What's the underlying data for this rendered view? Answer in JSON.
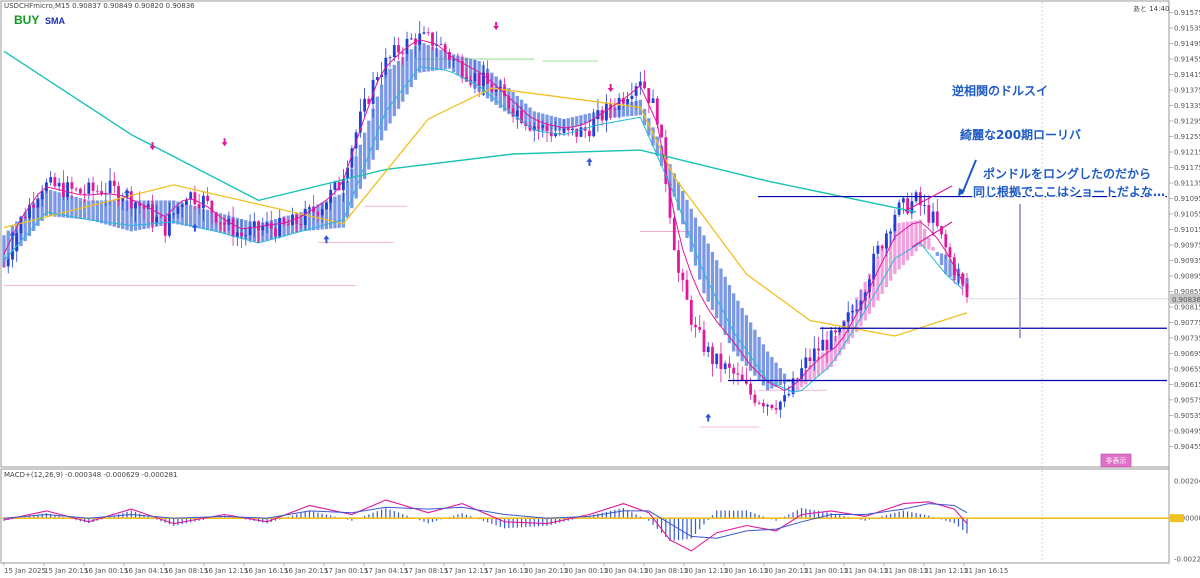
{
  "header": {
    "symbol_line": "USDCHFmicro,M15  0.90837 0.90849 0.90820 0.90836",
    "signal": "BUY",
    "indicator": "SMA",
    "timer": "あと 14:40",
    "macd_label": "MACD+(12,26,9) -0.000348 -0.000629 -0.000281",
    "button_label": "非表示"
  },
  "colors": {
    "up_candle": "#1f3fd6",
    "down_candle": "#e0189c",
    "sma200": "#1bc3b4",
    "sma_yellow": "#f0c020",
    "sma_fast": "#e0189c",
    "sma_cyan": "#25b9d6",
    "ribbon_down": "#5b7fe0",
    "ribbon_up": "#f08ad8",
    "hline": "#0000aa",
    "annotation": "#1e5bc6",
    "macd_zero": "#f0c020",
    "current_price_bg": "#c8c8c8",
    "button_bg": "#e070c8"
  },
  "annotations": [
    "逆相関のドルスイ",
    "綺麗な200期ローリバ",
    "ポンドルをロングしたのだから",
    "同じ根拠でここはショートだよな…"
  ],
  "chart_data": {
    "type": "candlestick",
    "symbol": "USDCHFmicro",
    "timeframe": "M15",
    "price_axis": {
      "ymin": 0.90425,
      "ymax": 0.91592,
      "ticks": [
        0.91575,
        0.91535,
        0.91495,
        0.91455,
        0.91415,
        0.91375,
        0.91335,
        0.91295,
        0.91255,
        0.91215,
        0.91175,
        0.91135,
        0.91095,
        0.91055,
        0.91015,
        0.90975,
        0.90935,
        0.90895,
        0.90855,
        0.90815,
        0.90775,
        0.90735,
        0.90695,
        0.90655,
        0.90615,
        0.90575,
        0.90535,
        0.90495,
        0.90455
      ],
      "current_price": 0.90836
    },
    "time_labels": [
      "15 Jan 2025",
      "15 Jan 20:15",
      "16 Jan 00:15",
      "16 Jan 04:15",
      "16 Jan 08:15",
      "16 Jan 12:15",
      "16 Jan 16:15",
      "16 Jan 20:15",
      "17 Jan 00:15",
      "17 Jan 04:15",
      "17 Jan 08:15",
      "17 Jan 12:15",
      "17 Jan 16:15",
      "20 Jan 20:15",
      "20 Jan 00:15",
      "20 Jan 04:15",
      "20 Jan 08:15",
      "20 Jan 12:15",
      "20 Jan 16:15",
      "20 Jan 20:15",
      "21 Jan 00:15",
      "21 Jan 04:15",
      "21 Jan 08:15",
      "21 Jan 12:15",
      "21 Jan 16:15"
    ],
    "close_path": [
      [
        0,
        0.9092
      ],
      [
        4,
        0.9104
      ],
      [
        9,
        0.9113
      ],
      [
        14,
        0.9112
      ],
      [
        18,
        0.9111
      ],
      [
        24,
        0.9112
      ],
      [
        28,
        0.9111
      ],
      [
        33,
        0.9107
      ],
      [
        38,
        0.9102
      ],
      [
        43,
        0.9111
      ],
      [
        47,
        0.9109
      ],
      [
        52,
        0.9103
      ],
      [
        56,
        0.91
      ],
      [
        61,
        0.9102
      ],
      [
        66,
        0.9102
      ],
      [
        70,
        0.9104
      ],
      [
        75,
        0.9108
      ],
      [
        79,
        0.9113
      ],
      [
        84,
        0.913
      ],
      [
        88,
        0.9142
      ],
      [
        93,
        0.9148
      ],
      [
        97,
        0.9151
      ],
      [
        102,
        0.915
      ],
      [
        106,
        0.9145
      ],
      [
        111,
        0.9141
      ],
      [
        115,
        0.9138
      ],
      [
        119,
        0.9134
      ],
      [
        124,
        0.9129
      ],
      [
        128,
        0.9127
      ],
      [
        133,
        0.9126
      ],
      [
        137,
        0.9127
      ],
      [
        141,
        0.9131
      ],
      [
        146,
        0.9136
      ],
      [
        150,
        0.9141
      ],
      [
        154,
        0.9131
      ],
      [
        159,
        0.909
      ],
      [
        163,
        0.9075
      ],
      [
        167,
        0.9068
      ],
      [
        172,
        0.9064
      ],
      [
        176,
        0.9059
      ],
      [
        180,
        0.9057
      ],
      [
        184,
        0.9057
      ],
      [
        189,
        0.9067
      ],
      [
        193,
        0.9072
      ],
      [
        197,
        0.9074
      ],
      [
        202,
        0.9085
      ],
      [
        206,
        0.9096
      ],
      [
        210,
        0.9106
      ],
      [
        215,
        0.9109
      ],
      [
        219,
        0.9104
      ],
      [
        223,
        0.9094
      ],
      [
        227,
        0.9084
      ]
    ],
    "sma200_path": [
      [
        0,
        0.91475
      ],
      [
        30,
        0.9126
      ],
      [
        60,
        0.9109
      ],
      [
        90,
        0.9117
      ],
      [
        120,
        0.9121
      ],
      [
        150,
        0.9122
      ],
      [
        180,
        0.9114
      ],
      [
        215,
        0.9106
      ]
    ],
    "sma_yellow_path": [
      [
        0,
        0.9102
      ],
      [
        40,
        0.9113
      ],
      [
        80,
        0.9103
      ],
      [
        100,
        0.913
      ],
      [
        115,
        0.9138
      ],
      [
        150,
        0.9133
      ],
      [
        158,
        0.9115
      ],
      [
        175,
        0.909
      ],
      [
        190,
        0.9078
      ],
      [
        210,
        0.9074
      ],
      [
        227,
        0.908
      ]
    ],
    "ribbon_path": [
      [
        0,
        0.91,
        0.9092
      ],
      [
        10,
        0.9112,
        0.9105
      ],
      [
        20,
        0.9109,
        0.9104
      ],
      [
        30,
        0.9109,
        0.9101
      ],
      [
        40,
        0.9109,
        0.9103
      ],
      [
        50,
        0.9106,
        0.9101
      ],
      [
        60,
        0.9103,
        0.9098
      ],
      [
        70,
        0.9106,
        0.9101
      ],
      [
        80,
        0.9111,
        0.9102
      ],
      [
        90,
        0.9142,
        0.9127
      ],
      [
        98,
        0.915,
        0.9142
      ],
      [
        105,
        0.9147,
        0.9143
      ],
      [
        112,
        0.9145,
        0.9137
      ],
      [
        118,
        0.9139,
        0.9132
      ],
      [
        125,
        0.9132,
        0.9127
      ],
      [
        132,
        0.913,
        0.9127
      ],
      [
        140,
        0.9132,
        0.913
      ],
      [
        150,
        0.9135,
        0.9131
      ],
      [
        158,
        0.9116,
        0.911
      ],
      [
        165,
        0.91,
        0.9085
      ],
      [
        172,
        0.9085,
        0.907
      ],
      [
        180,
        0.907,
        0.906
      ],
      [
        187,
        0.906,
        0.9063
      ],
      [
        195,
        0.9066,
        0.9072
      ],
      [
        203,
        0.9078,
        0.9088
      ],
      [
        210,
        0.909,
        0.9103
      ],
      [
        216,
        0.9097,
        0.9104
      ],
      [
        222,
        0.9095,
        0.909
      ],
      [
        227,
        0.9089,
        0.9086
      ]
    ],
    "horizontal_lines": [
      0.911,
      0.9076,
      0.90625
    ],
    "short_ranges": [
      {
        "price": 0.91455,
        "from": 97,
        "to": 125
      },
      {
        "price": 0.9145,
        "from": 127,
        "to": 140
      },
      {
        "price": 0.91075,
        "from": 85,
        "to": 95
      },
      {
        "price": 0.90982,
        "from": 74,
        "to": 92
      },
      {
        "price": 0.9087,
        "from": 0,
        "to": 83
      },
      {
        "price": 0.9101,
        "from": 150,
        "to": 162
      },
      {
        "price": 0.906,
        "from": 178,
        "to": 194
      },
      {
        "price": 0.90505,
        "from": 164,
        "to": 178
      }
    ],
    "buy_arrows": [
      [
        2,
        0.9101
      ],
      [
        29,
        0.9112
      ],
      [
        45,
        0.9103
      ],
      [
        76,
        0.91
      ],
      [
        138,
        0.912
      ],
      [
        166,
        0.9054
      ]
    ],
    "sell_arrows": [
      [
        35,
        0.9122
      ],
      [
        52,
        0.9123
      ],
      [
        116,
        0.9153
      ],
      [
        143,
        0.9137
      ]
    ],
    "macd": {
      "range": [
        -0.0023,
        0.0021
      ],
      "zero": 0,
      "main_path": [
        [
          0,
          -0.0001
        ],
        [
          10,
          0.0004
        ],
        [
          20,
          -0.0002
        ],
        [
          30,
          0.0005
        ],
        [
          40,
          -0.0003
        ],
        [
          52,
          0.0002
        ],
        [
          62,
          -0.0002
        ],
        [
          72,
          0.0007
        ],
        [
          82,
          0.0002
        ],
        [
          90,
          0.001
        ],
        [
          100,
          0.0003
        ],
        [
          108,
          0.0008
        ],
        [
          118,
          -0.0002
        ],
        [
          128,
          -0.0003
        ],
        [
          138,
          0.0002
        ],
        [
          146,
          0.0008
        ],
        [
          152,
          0.0003
        ],
        [
          157,
          -0.0012
        ],
        [
          162,
          -0.0018
        ],
        [
          168,
          -0.0008
        ],
        [
          175,
          -0.0004
        ],
        [
          182,
          -0.0007
        ],
        [
          188,
          0.0002
        ],
        [
          195,
          0.0004
        ],
        [
          203,
          0.0001
        ],
        [
          212,
          0.0008
        ],
        [
          218,
          0.0009
        ],
        [
          224,
          0.0005
        ],
        [
          227,
          -0.0003
        ]
      ],
      "signal_path": [
        [
          0,
          0.0
        ],
        [
          10,
          0.0002
        ],
        [
          20,
          0.0
        ],
        [
          30,
          0.0002
        ],
        [
          40,
          0.0
        ],
        [
          52,
          0.0001
        ],
        [
          62,
          0.0
        ],
        [
          72,
          0.0004
        ],
        [
          82,
          0.0003
        ],
        [
          90,
          0.0006
        ],
        [
          100,
          0.0005
        ],
        [
          108,
          0.0006
        ],
        [
          118,
          0.0002
        ],
        [
          128,
          0.0
        ],
        [
          138,
          0.0001
        ],
        [
          146,
          0.0004
        ],
        [
          152,
          0.0004
        ],
        [
          157,
          -0.0003
        ],
        [
          162,
          -0.001
        ],
        [
          168,
          -0.0011
        ],
        [
          175,
          -0.0007
        ],
        [
          182,
          -0.0006
        ],
        [
          188,
          -0.0002
        ],
        [
          195,
          0.0002
        ],
        [
          203,
          0.0002
        ],
        [
          212,
          0.0005
        ],
        [
          218,
          0.0008
        ],
        [
          224,
          0.0007
        ],
        [
          227,
          0.0003
        ]
      ]
    }
  }
}
